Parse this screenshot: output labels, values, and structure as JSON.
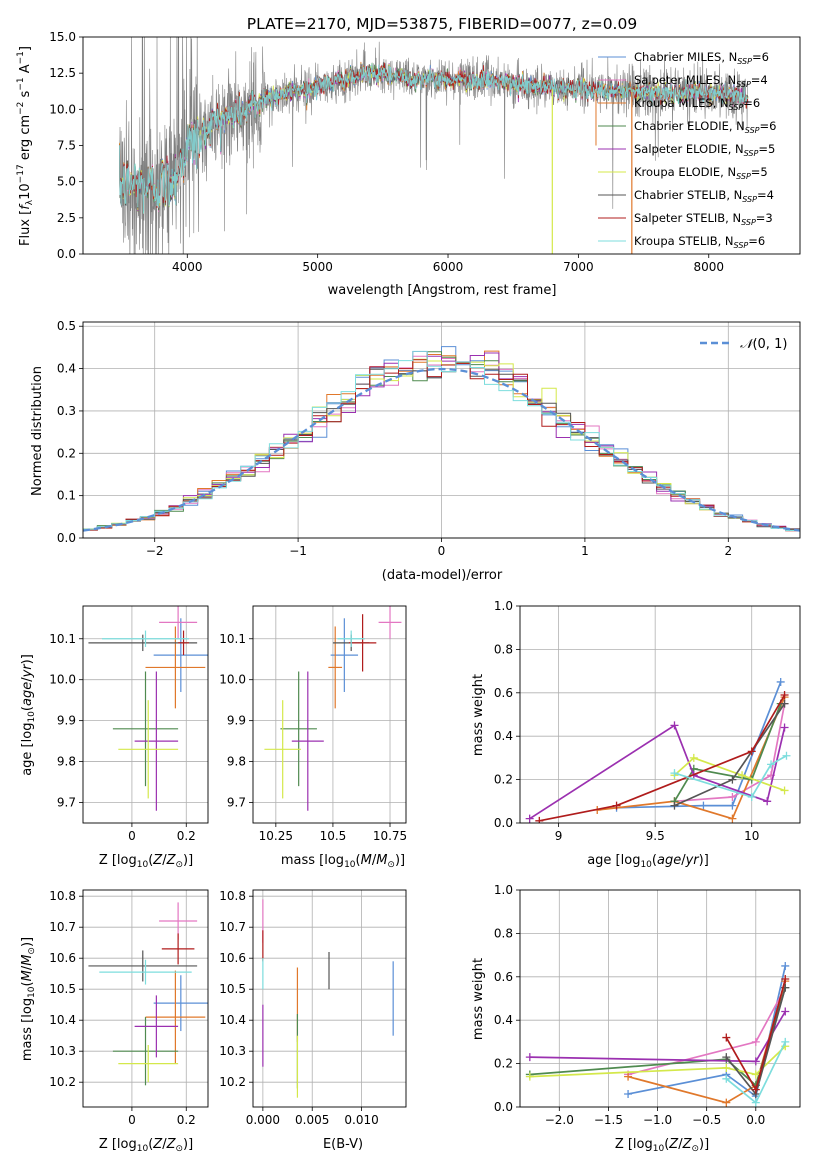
{
  "figure": {
    "title": "PLATE=2170, MJD=53875, FIBERID=0077, z=0.09"
  },
  "colors": {
    "Chabrier MILES": "#5b8fd6",
    "Salpeter MILES": "#e377c2",
    "Kroupa MILES": "#e0782b",
    "Chabrier ELODIE": "#4f8a4f",
    "Salpeter ELODIE": "#9b30b0",
    "Kroupa ELODIE": "#d4e84a",
    "Chabrier STELIB": "#555555",
    "Salpeter STELIB": "#b01c1c",
    "Kroupa STELIB": "#7ddddd",
    "data": "#808080",
    "normal": "#5b8fd6"
  },
  "chart_data": [
    {
      "id": "spectrum",
      "type": "line",
      "xlabel": "wavelength [Angstrom, rest frame]",
      "ylabel": "Flux [f_λ 10^-17 erg cm^-2 s^-1 A^-1]",
      "xlim": [
        3200,
        8700
      ],
      "ylim": [
        0,
        15
      ],
      "xticks": [
        4000,
        5000,
        6000,
        7000,
        8000
      ],
      "yticks": [
        0.0,
        2.5,
        5.0,
        7.5,
        10.0,
        12.5,
        15.0
      ],
      "grid": false,
      "legend_position": "right",
      "series": [
        {
          "name": "Chabrier MILES, N_SSP=6",
          "legend_main": "Chabrier MILES, N",
          "legend_sub": "SSP",
          "legend_tail": "=6"
        },
        {
          "name": "Salpeter MILES, N_SSP=4",
          "legend_main": "Salpeter MILES, N",
          "legend_sub": "SSP",
          "legend_tail": "=4"
        },
        {
          "name": "Kroupa MILES, N_SSP=6",
          "legend_main": "Kroupa MILES, N",
          "legend_sub": "SSP",
          "legend_tail": "=6"
        },
        {
          "name": "Chabrier ELODIE, N_SSP=6",
          "legend_main": "Chabrier ELODIE, N",
          "legend_sub": "SSP",
          "legend_tail": "=6"
        },
        {
          "name": "Salpeter ELODIE, N_SSP=5",
          "legend_main": "Salpeter ELODIE, N",
          "legend_sub": "SSP",
          "legend_tail": "=5"
        },
        {
          "name": "Kroupa ELODIE, N_SSP=5",
          "legend_main": "Kroupa ELODIE, N",
          "legend_sub": "SSP",
          "legend_tail": "=5"
        },
        {
          "name": "Chabrier STELIB, N_SSP=4",
          "legend_main": "Chabrier STELIB, N",
          "legend_sub": "SSP",
          "legend_tail": "=4"
        },
        {
          "name": "Salpeter STELIB, N_SSP=3",
          "legend_main": "Salpeter STELIB, N",
          "legend_sub": "SSP",
          "legend_tail": "=3"
        },
        {
          "name": "Kroupa STELIB, N_SSP=6",
          "legend_main": "Kroupa STELIB, N",
          "legend_sub": "SSP",
          "legend_tail": "=6"
        }
      ],
      "continuum": {
        "x": [
          3500,
          3600,
          3700,
          3800,
          3900,
          4000,
          4100,
          4200,
          4300,
          4400,
          4500,
          4600,
          4800,
          5000,
          5200,
          5400,
          5600,
          5800,
          6000,
          6200,
          6400,
          6600,
          6800,
          7000,
          7200,
          7400,
          7600,
          7800,
          8000,
          8200,
          8300
        ],
        "y": [
          4.8,
          4.9,
          4.6,
          4.8,
          5.2,
          7.5,
          8.0,
          9.2,
          9.4,
          9.8,
          10.2,
          10.8,
          11.2,
          11.6,
          12.0,
          12.5,
          12.3,
          12.1,
          12.1,
          12.0,
          11.9,
          11.6,
          11.5,
          11.4,
          11.3,
          11.2,
          11.2,
          11.1,
          11.1,
          11.0,
          10.9
        ]
      }
    },
    {
      "id": "residuals",
      "type": "bar",
      "xlabel": "(data-model)/error",
      "ylabel": "Normed distribution",
      "xlim": [
        -2.5,
        2.5
      ],
      "ylim": [
        0,
        0.51
      ],
      "xticks": [
        -2,
        -1,
        0,
        1,
        2
      ],
      "xtick_labels": [
        "−2",
        "−1",
        "0",
        "1",
        "2"
      ],
      "yticks": [
        0.0,
        0.1,
        0.2,
        0.3,
        0.4,
        0.5
      ],
      "grid": true,
      "legend": "N(0,1)",
      "bin_width": 0.1
    },
    {
      "id": "age-vs-Z",
      "type": "scatter",
      "xlabel": "Z [log10(Z/Z⊙)]",
      "ylabel": "age  [log10(age/yr)]",
      "xlim": [
        -0.18,
        0.28
      ],
      "ylim": [
        9.65,
        10.18
      ],
      "xticks": [
        0.0,
        0.2
      ],
      "yticks": [
        9.7,
        9.8,
        9.9,
        10.0,
        10.1
      ],
      "grid": true,
      "points": [
        {
          "model": "Chabrier MILES",
          "x": 0.18,
          "xerr": 0.1,
          "y": 10.06,
          "yerr": 0.09
        },
        {
          "model": "Salpeter MILES",
          "x": 0.17,
          "xerr": 0.07,
          "y": 10.14,
          "yerr": 0.04
        },
        {
          "model": "Kroupa MILES",
          "x": 0.16,
          "xerr": 0.11,
          "y": 10.03,
          "yerr": 0.1
        },
        {
          "model": "Chabrier ELODIE",
          "x": 0.05,
          "xerr": 0.12,
          "y": 9.88,
          "yerr": 0.14
        },
        {
          "model": "Salpeter ELODIE",
          "x": 0.09,
          "xerr": 0.08,
          "y": 9.85,
          "yerr": 0.17
        },
        {
          "model": "Kroupa ELODIE",
          "x": 0.06,
          "xerr": 0.11,
          "y": 9.83,
          "yerr": 0.12
        },
        {
          "model": "Chabrier STELIB",
          "x": 0.04,
          "xerr": 0.2,
          "y": 10.09,
          "yerr": 0.02
        },
        {
          "model": "Salpeter STELIB",
          "x": 0.19,
          "xerr": 0.02,
          "y": 10.09,
          "yerr": 0.03
        },
        {
          "model": "Kroupa STELIB",
          "x": 0.05,
          "xerr": 0.16,
          "y": 10.1,
          "yerr": 0.02
        }
      ]
    },
    {
      "id": "age-vs-mass",
      "type": "scatter",
      "xlabel": "mass [log10(M/M⊙)]",
      "xlim": [
        10.15,
        10.82
      ],
      "ylim": [
        9.65,
        10.18
      ],
      "xticks": [
        10.25,
        10.5,
        10.75
      ],
      "yticks": [
        9.7,
        9.8,
        9.9,
        10.0,
        10.1
      ],
      "grid": true,
      "points": [
        {
          "model": "Chabrier MILES",
          "x": 10.55,
          "xerr": 0.06,
          "y": 10.06,
          "yerr": 0.09
        },
        {
          "model": "Salpeter MILES",
          "x": 10.75,
          "xerr": 0.05,
          "y": 10.14,
          "yerr": 0.04
        },
        {
          "model": "Kroupa MILES",
          "x": 10.51,
          "xerr": 0.03,
          "y": 10.03,
          "yerr": 0.1
        },
        {
          "model": "Chabrier ELODIE",
          "x": 10.35,
          "xerr": 0.08,
          "y": 9.88,
          "yerr": 0.14
        },
        {
          "model": "Salpeter ELODIE",
          "x": 10.39,
          "xerr": 0.07,
          "y": 9.85,
          "yerr": 0.17
        },
        {
          "model": "Kroupa ELODIE",
          "x": 10.28,
          "xerr": 0.08,
          "y": 9.83,
          "yerr": 0.12
        },
        {
          "model": "Chabrier STELIB",
          "x": 10.58,
          "xerr": 0.08,
          "y": 10.09,
          "yerr": 0.02
        },
        {
          "model": "Salpeter STELIB",
          "x": 10.63,
          "xerr": 0.06,
          "y": 10.09,
          "yerr": 0.07
        },
        {
          "model": "Kroupa STELIB",
          "x": 10.58,
          "xerr": 0.06,
          "y": 10.1,
          "yerr": 0.02
        }
      ]
    },
    {
      "id": "weight-vs-age",
      "type": "line",
      "xlabel": "age  [log10(age/yr)]",
      "ylabel": "mass weight",
      "xlim": [
        8.8,
        10.25
      ],
      "ylim": [
        0,
        1
      ],
      "xticks": [
        9.0,
        9.5,
        10.0
      ],
      "yticks": [
        0.0,
        0.2,
        0.4,
        0.6,
        0.8,
        1.0
      ],
      "grid": true,
      "series": [
        {
          "model": "Chabrier MILES",
          "x": [
            9.3,
            9.75,
            9.9,
            10.15
          ],
          "y": [
            0.07,
            0.08,
            0.08,
            0.65
          ]
        },
        {
          "model": "Salpeter MILES",
          "x": [
            9.6,
            9.9,
            10.1,
            10.17
          ],
          "y": [
            0.1,
            0.12,
            0.22,
            0.55
          ]
        },
        {
          "model": "Kroupa MILES",
          "x": [
            9.2,
            9.6,
            9.9,
            10.17
          ],
          "y": [
            0.06,
            0.1,
            0.02,
            0.58
          ]
        },
        {
          "model": "Chabrier ELODIE",
          "x": [
            9.6,
            9.7,
            10.0,
            10.15
          ],
          "y": [
            0.1,
            0.25,
            0.2,
            0.55
          ]
        },
        {
          "model": "Salpeter ELODIE",
          "x": [
            8.85,
            9.6,
            9.7,
            10.08,
            10.17
          ],
          "y": [
            0.02,
            0.45,
            0.22,
            0.1,
            0.44
          ]
        },
        {
          "model": "Kroupa ELODIE",
          "x": [
            9.6,
            9.7,
            9.95,
            10.17
          ],
          "y": [
            0.22,
            0.3,
            0.22,
            0.15
          ]
        },
        {
          "model": "Chabrier STELIB",
          "x": [
            9.6,
            9.9,
            10.17
          ],
          "y": [
            0.08,
            0.2,
            0.55
          ]
        },
        {
          "model": "Salpeter STELIB",
          "x": [
            8.9,
            9.3,
            10.0,
            10.17
          ],
          "y": [
            0.01,
            0.08,
            0.33,
            0.59
          ]
        },
        {
          "model": "Kroupa STELIB",
          "x": [
            9.6,
            10.0,
            10.1,
            10.18
          ],
          "y": [
            0.23,
            0.12,
            0.27,
            0.31
          ]
        }
      ]
    },
    {
      "id": "mass-vs-Z",
      "type": "scatter",
      "xlabel": "Z [log10(Z/Z⊙)]",
      "ylabel": "mass [log10(M/M⊙)]",
      "xlim": [
        -0.18,
        0.28
      ],
      "ylim": [
        10.12,
        10.82
      ],
      "xticks": [
        0.0,
        0.2
      ],
      "yticks": [
        10.2,
        10.3,
        10.4,
        10.5,
        10.6,
        10.7,
        10.8
      ],
      "grid": true,
      "points": [
        {
          "model": "Chabrier MILES",
          "x": 0.18,
          "xerr": 0.1,
          "y": 10.455,
          "yerr": 0.09
        },
        {
          "model": "Salpeter MILES",
          "x": 0.17,
          "xerr": 0.07,
          "y": 10.72,
          "yerr": 0.06
        },
        {
          "model": "Kroupa MILES",
          "x": 0.16,
          "xerr": 0.11,
          "y": 10.41,
          "yerr": 0.15
        },
        {
          "model": "Chabrier ELODIE",
          "x": 0.05,
          "xerr": 0.12,
          "y": 10.3,
          "yerr": 0.11
        },
        {
          "model": "Salpeter ELODIE",
          "x": 0.09,
          "xerr": 0.08,
          "y": 10.38,
          "yerr": 0.1
        },
        {
          "model": "Kroupa ELODIE",
          "x": 0.06,
          "xerr": 0.11,
          "y": 10.26,
          "yerr": 0.06
        },
        {
          "model": "Chabrier STELIB",
          "x": 0.04,
          "xerr": 0.2,
          "y": 10.575,
          "yerr": 0.05
        },
        {
          "model": "Salpeter STELIB",
          "x": 0.17,
          "xerr": 0.06,
          "y": 10.63,
          "yerr": 0.05
        },
        {
          "model": "Kroupa STELIB",
          "x": 0.05,
          "xerr": 0.17,
          "y": 10.555,
          "yerr": 0.04
        }
      ]
    },
    {
      "id": "mass-vs-EBV",
      "type": "scatter",
      "xlabel": "E(B-V)",
      "xlim": [
        -0.001,
        0.0145
      ],
      "ylim": [
        10.12,
        10.82
      ],
      "xticks": [
        0.0,
        0.005,
        0.01
      ],
      "xtick_labels": [
        "0.000",
        "0.005",
        "0.010"
      ],
      "yticks": [
        10.2,
        10.3,
        10.4,
        10.5,
        10.6,
        10.7,
        10.8
      ],
      "grid": true,
      "points": [
        {
          "model": "Chabrier MILES",
          "x": 0.0132,
          "y": 10.47,
          "yerr": 0.12
        },
        {
          "model": "Salpeter MILES",
          "x": 0.0,
          "y": 10.72,
          "yerr": 0.07
        },
        {
          "model": "Kroupa MILES",
          "x": 0.0035,
          "y": 10.45,
          "yerr": 0.12
        },
        {
          "model": "Chabrier ELODIE",
          "x": 0.0035,
          "y": 10.3,
          "yerr": 0.12
        },
        {
          "model": "Salpeter ELODIE",
          "x": 0.0,
          "y": 10.35,
          "yerr": 0.1
        },
        {
          "model": "Kroupa ELODIE",
          "x": 0.0035,
          "y": 10.25,
          "yerr": 0.1
        },
        {
          "model": "Chabrier STELIB",
          "x": 0.0067,
          "y": 10.56,
          "yerr": 0.06
        },
        {
          "model": "Salpeter STELIB",
          "x": 0.0,
          "y": 10.64,
          "yerr": 0.05
        },
        {
          "model": "Kroupa STELIB",
          "x": 0.0,
          "y": 10.55,
          "yerr": 0.05
        }
      ]
    },
    {
      "id": "weight-vs-Z",
      "type": "line",
      "xlabel": "Z [log10(Z/Z⊙)]",
      "ylabel": "mass weight",
      "xlim": [
        -2.4,
        0.45
      ],
      "ylim": [
        0,
        1
      ],
      "xticks": [
        -2.0,
        -1.5,
        -1.0,
        -0.5,
        0.0
      ],
      "xtick_labels": [
        "−2.0",
        "−1.5",
        "−1.0",
        "−0.5",
        "0.0"
      ],
      "yticks": [
        0.0,
        0.2,
        0.4,
        0.6,
        0.8,
        1.0
      ],
      "grid": true,
      "series": [
        {
          "model": "Chabrier MILES",
          "x": [
            -1.3,
            -0.3,
            0.0,
            0.3
          ],
          "y": [
            0.06,
            0.15,
            0.05,
            0.65
          ]
        },
        {
          "model": "Salpeter MILES",
          "x": [
            -1.3,
            0.0,
            0.3
          ],
          "y": [
            0.15,
            0.3,
            0.55
          ]
        },
        {
          "model": "Kroupa MILES",
          "x": [
            -1.3,
            -0.3,
            0.0,
            0.3
          ],
          "y": [
            0.14,
            0.02,
            0.1,
            0.58
          ]
        },
        {
          "model": "Chabrier ELODIE",
          "x": [
            -2.3,
            -0.3,
            0.0,
            0.3
          ],
          "y": [
            0.15,
            0.22,
            0.1,
            0.55
          ]
        },
        {
          "model": "Salpeter ELODIE",
          "x": [
            -2.3,
            0.0,
            0.3
          ],
          "y": [
            0.23,
            0.21,
            0.44
          ]
        },
        {
          "model": "Kroupa ELODIE",
          "x": [
            -2.3,
            -0.3,
            0.0,
            0.3
          ],
          "y": [
            0.14,
            0.18,
            0.15,
            0.28
          ]
        },
        {
          "model": "Chabrier STELIB",
          "x": [
            -0.3,
            0.0,
            0.3
          ],
          "y": [
            0.23,
            0.06,
            0.55
          ]
        },
        {
          "model": "Salpeter STELIB",
          "x": [
            -0.3,
            0.0,
            0.3
          ],
          "y": [
            0.32,
            0.08,
            0.59
          ]
        },
        {
          "model": "Kroupa STELIB",
          "x": [
            -0.3,
            0.0,
            0.3
          ],
          "y": [
            0.13,
            0.02,
            0.3
          ]
        }
      ]
    }
  ]
}
